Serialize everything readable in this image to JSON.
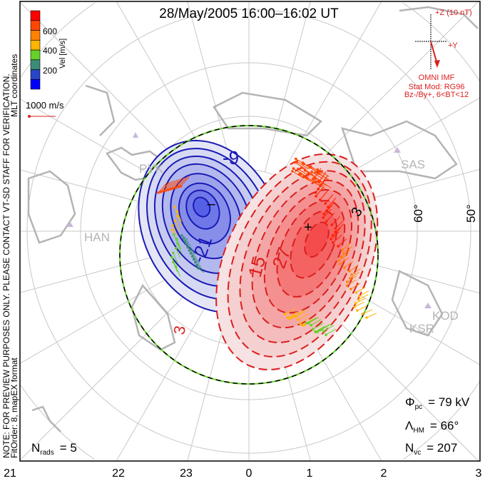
{
  "title": "28/May/2005 16:00–16:02 UT",
  "side_note": {
    "line1": "NOTE: FOR PREVIEW PURPOSES ONLY. PLEASE CONTACT VT-SD STAFF FOR VERIFICATION.",
    "line2": "FitOrder: 8, mapEX format",
    "coords": "MLT coordinates"
  },
  "colorbar": {
    "label": "Vel [m/s]",
    "ticks": [
      "200",
      "400",
      "600"
    ],
    "colors": [
      "#0000ff",
      "#2846c8",
      "#3c8c78",
      "#64d228",
      "#ffb400",
      "#ff8200",
      "#ff4600",
      "#ff0000"
    ]
  },
  "ref_vector": {
    "label": "1000 m/s"
  },
  "imf": {
    "z_label": "+Z (10 nT)",
    "y_label": "+Y",
    "source": "OMNI IMF",
    "model": "Stat Mod: RG96",
    "condition": "Bz-/By+, 6<BT<12"
  },
  "stats": {
    "phi_pc": {
      "sym": "Φ",
      "sub": "pc",
      "value": "= 79 kV"
    },
    "lambda_hm": {
      "sym": "Λ",
      "sub": "HM",
      "value": "= 66°"
    },
    "n_vc": {
      "sym": "N",
      "sub": "vc",
      "value": "= 207"
    },
    "n_rads": {
      "sym": "N",
      "sub": "rads",
      "value": "= 5"
    }
  },
  "mlt_labels": [
    "21",
    "22",
    "23",
    "0",
    "1",
    "2",
    "3"
  ],
  "lat_labels": [
    "60°",
    "50°"
  ],
  "stations": [
    "PYK",
    "HAN",
    "SAS",
    "KOD",
    "KSR"
  ],
  "contour_labels": [
    "-9",
    "-21",
    "15",
    "27",
    "3",
    "3"
  ],
  "extrema": {
    "min": "–",
    "max": "+"
  },
  "colors": {
    "blue": "#1a1ab4",
    "red": "#dc1e1e",
    "grid": "#c8c8c8",
    "land": "#b4b4b4",
    "hmb": "#64d228"
  }
}
